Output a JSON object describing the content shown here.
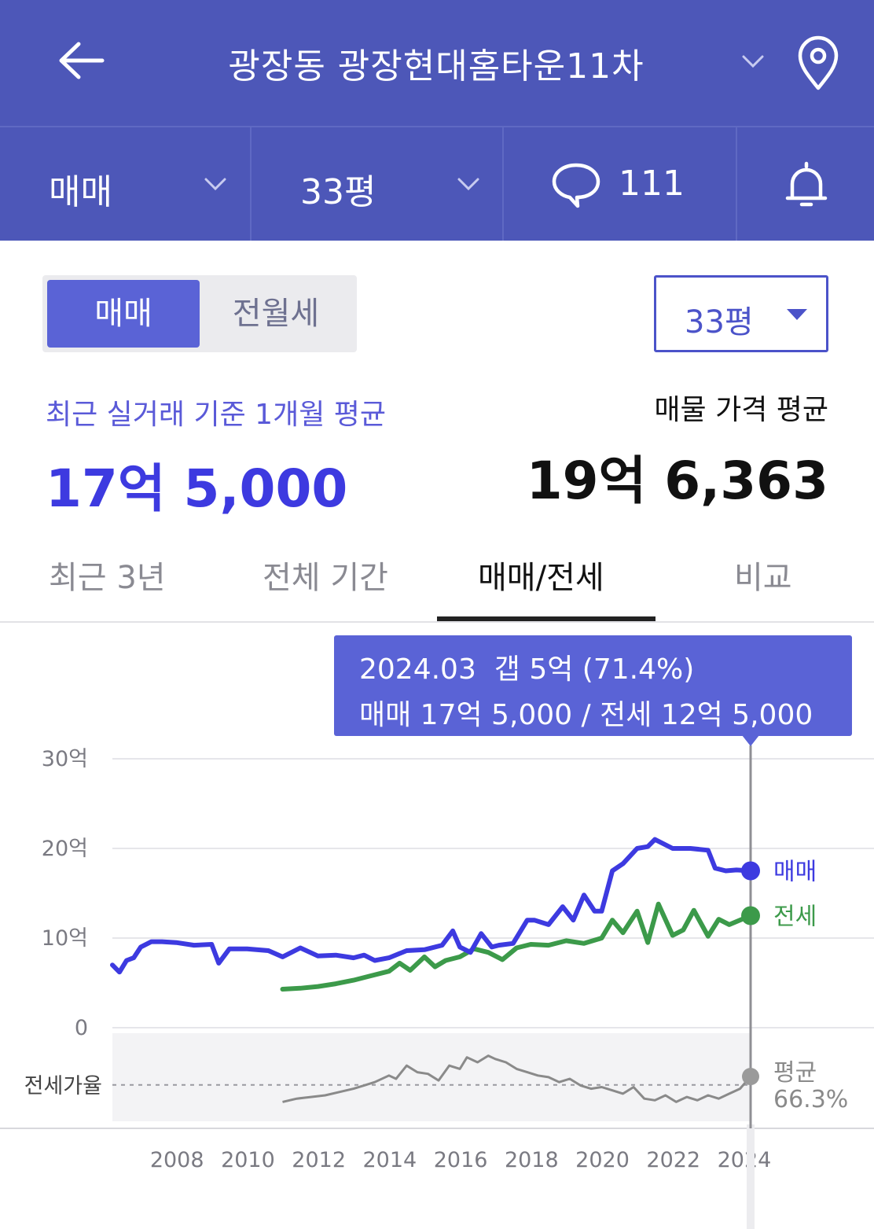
{
  "header": {
    "title": "광장동 광장현대홈타운11차",
    "back_icon": "arrow-left-icon",
    "location_icon": "map-pin-icon"
  },
  "subbar": {
    "trade_type": "매매",
    "size": "33평",
    "comment_count": "111",
    "comment_icon": "chat-bubble-icon",
    "alert_icon": "bell-icon"
  },
  "segment": {
    "active": "매매",
    "inactive": "전월세"
  },
  "size_select": {
    "value": "33평"
  },
  "summary": {
    "recent_label": "최근 실거래 기준 1개월 평균",
    "recent_value": "17억 5,000",
    "ask_label": "매물 가격 평균",
    "ask_value": "19억 6,363"
  },
  "tabs": [
    {
      "label": "최근 3년",
      "active": false
    },
    {
      "label": "전체 기간",
      "active": false
    },
    {
      "label": "매매/전세",
      "active": true
    },
    {
      "label": "비교",
      "active": false
    }
  ],
  "tooltip": {
    "line1": "2024.03  갭 5억 (71.4%)",
    "line2": "매매 17억 5,000 / 전세 12억 5,000"
  },
  "colors": {
    "header_bg": "#4d57b8",
    "accent": "#5a63d6",
    "sale": "#3d3ae0",
    "jeonse": "#3c9a4a",
    "ratio": "#888888"
  },
  "chart_data": {
    "type": "line",
    "y_ticks": [
      "30억",
      "20억",
      "10억",
      "0"
    ],
    "ylim": [
      0,
      30
    ],
    "x_ticks": [
      "2008",
      "2010",
      "2012",
      "2014",
      "2016",
      "2018",
      "2020",
      "2022",
      "2024"
    ],
    "xlim": [
      2006.2,
      2024.2
    ],
    "ratio_label": "전세가율",
    "ratio_avg_label": "평균",
    "ratio_avg_value": "66.3%",
    "ratio_avg": 66.3,
    "highlight_x": 2024.2,
    "series": [
      {
        "name": "매매",
        "color": "#3d3ae0",
        "x": [
          2006.2,
          2006.4,
          2006.6,
          2006.8,
          2007.0,
          2007.3,
          2007.6,
          2008.0,
          2008.5,
          2009.0,
          2009.2,
          2009.5,
          2010.0,
          2010.6,
          2011.0,
          2011.5,
          2012.0,
          2012.5,
          2013.0,
          2013.3,
          2013.6,
          2014.0,
          2014.5,
          2015.0,
          2015.5,
          2015.8,
          2016.0,
          2016.3,
          2016.6,
          2016.9,
          2017.1,
          2017.5,
          2017.9,
          2018.1,
          2018.5,
          2018.9,
          2019.2,
          2019.5,
          2019.8,
          2020.0,
          2020.3,
          2020.6,
          2021.0,
          2021.3,
          2021.5,
          2022.0,
          2022.5,
          2023.0,
          2023.2,
          2023.5,
          2023.8,
          2024.2
        ],
        "values": [
          7.0,
          6.2,
          7.5,
          7.8,
          9.0,
          9.6,
          9.6,
          9.5,
          9.2,
          9.3,
          7.2,
          8.8,
          8.8,
          8.6,
          7.9,
          8.9,
          8.0,
          8.1,
          7.8,
          8.1,
          7.5,
          7.8,
          8.6,
          8.7,
          9.2,
          10.8,
          9.0,
          8.4,
          10.5,
          9.0,
          9.2,
          9.4,
          12.0,
          12.0,
          11.5,
          13.5,
          12.0,
          14.8,
          13.0,
          13.0,
          17.5,
          18.3,
          20.0,
          20.2,
          21.0,
          20.0,
          20.0,
          19.8,
          17.8,
          17.5,
          17.6,
          17.5
        ]
      },
      {
        "name": "전세",
        "color": "#3c9a4a",
        "x": [
          2011.0,
          2011.5,
          2012.0,
          2012.5,
          2013.0,
          2013.5,
          2014.0,
          2014.3,
          2014.6,
          2015.0,
          2015.3,
          2015.6,
          2016.0,
          2016.4,
          2016.8,
          2017.2,
          2017.6,
          2018.0,
          2018.5,
          2019.0,
          2019.5,
          2020.0,
          2020.3,
          2020.6,
          2021.0,
          2021.3,
          2021.6,
          2022.0,
          2022.3,
          2022.6,
          2023.0,
          2023.3,
          2023.6,
          2024.2
        ],
        "values": [
          4.3,
          4.4,
          4.6,
          4.9,
          5.3,
          5.8,
          6.3,
          7.2,
          6.4,
          7.9,
          6.8,
          7.5,
          7.9,
          8.8,
          8.4,
          7.6,
          8.9,
          9.3,
          9.2,
          9.7,
          9.4,
          10.0,
          12.0,
          10.6,
          13.0,
          9.5,
          13.8,
          10.3,
          10.9,
          13.1,
          10.2,
          12.1,
          11.5,
          12.5
        ]
      }
    ],
    "ratio_series": {
      "name": "전세가율",
      "x": [
        2011.0,
        2011.4,
        2011.8,
        2012.2,
        2012.6,
        2013.0,
        2013.3,
        2013.6,
        2014.0,
        2014.2,
        2014.5,
        2014.8,
        2015.1,
        2015.4,
        2015.7,
        2016.0,
        2016.2,
        2016.5,
        2016.8,
        2017.0,
        2017.3,
        2017.6,
        2017.9,
        2018.2,
        2018.5,
        2018.8,
        2019.1,
        2019.4,
        2019.7,
        2020.0,
        2020.3,
        2020.6,
        2020.9,
        2021.2,
        2021.5,
        2021.8,
        2022.1,
        2022.4,
        2022.7,
        2023.0,
        2023.3,
        2023.6,
        2023.9,
        2024.2
      ],
      "values": [
        56,
        58,
        59,
        60,
        62,
        64,
        66,
        68,
        72,
        70,
        78,
        74,
        73,
        69,
        78,
        76,
        83,
        80,
        84,
        82,
        80,
        76,
        74,
        72,
        71,
        68,
        70,
        66,
        64,
        65,
        63,
        61,
        65,
        58,
        57,
        60,
        56,
        59,
        57,
        60,
        58,
        61,
        64,
        71.4
      ]
    }
  }
}
